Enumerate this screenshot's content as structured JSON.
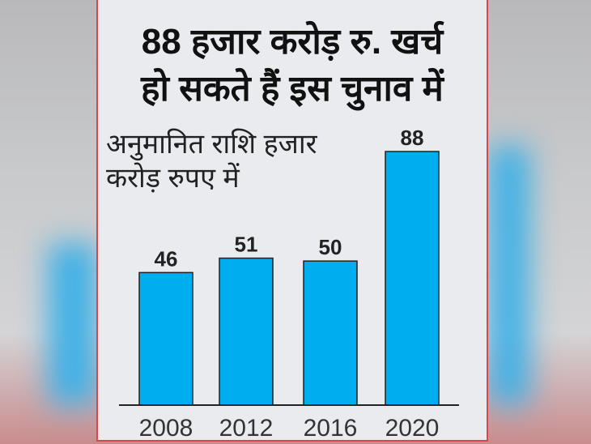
{
  "chart_data": {
    "type": "bar",
    "title": "88 हजार करोड़ रु. खर्च हो सकते हैं इस चुनाव में",
    "title_lines": [
      "88 हजार करोड़ रु. खर्च",
      "हो सकते हैं इस चुनाव में"
    ],
    "subtitle_lines": [
      "अनुमानित राशि हजार",
      "करोड़ रुपए में"
    ],
    "categories": [
      "2008",
      "2012",
      "2016",
      "2020"
    ],
    "values": [
      46,
      51,
      50,
      88
    ],
    "bar_color": "#00adee",
    "grid": false,
    "xlabel": "",
    "ylabel": ""
  }
}
